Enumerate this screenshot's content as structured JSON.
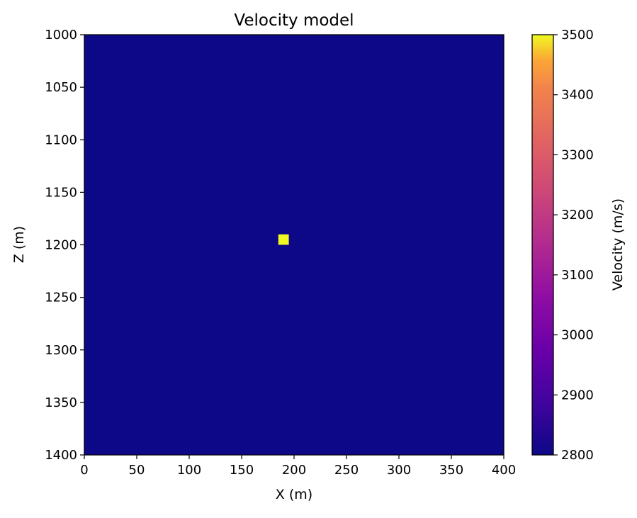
{
  "chart_data": {
    "type": "heatmap",
    "title": "Velocity model",
    "xlabel": "X (m)",
    "ylabel": "Z (m)",
    "xlim": [
      0,
      400
    ],
    "ylim": [
      1400,
      1000
    ],
    "x_ticks": [
      0,
      50,
      100,
      150,
      200,
      250,
      300,
      350,
      400
    ],
    "y_ticks": [
      1000,
      1050,
      1100,
      1150,
      1200,
      1250,
      1300,
      1350,
      1400
    ],
    "background_value": 2800,
    "anomaly": {
      "x": [
        185,
        195
      ],
      "z": [
        1190,
        1200
      ],
      "value": 3500
    },
    "colorbar": {
      "label": "Velocity (m/s)",
      "range": [
        2800,
        3500
      ],
      "ticks": [
        2800,
        2900,
        3000,
        3100,
        3200,
        3300,
        3400,
        3500
      ],
      "colormap": "plasma"
    },
    "grid": false
  },
  "colors": {
    "low": "#0d0887",
    "high": "#f0f921"
  }
}
